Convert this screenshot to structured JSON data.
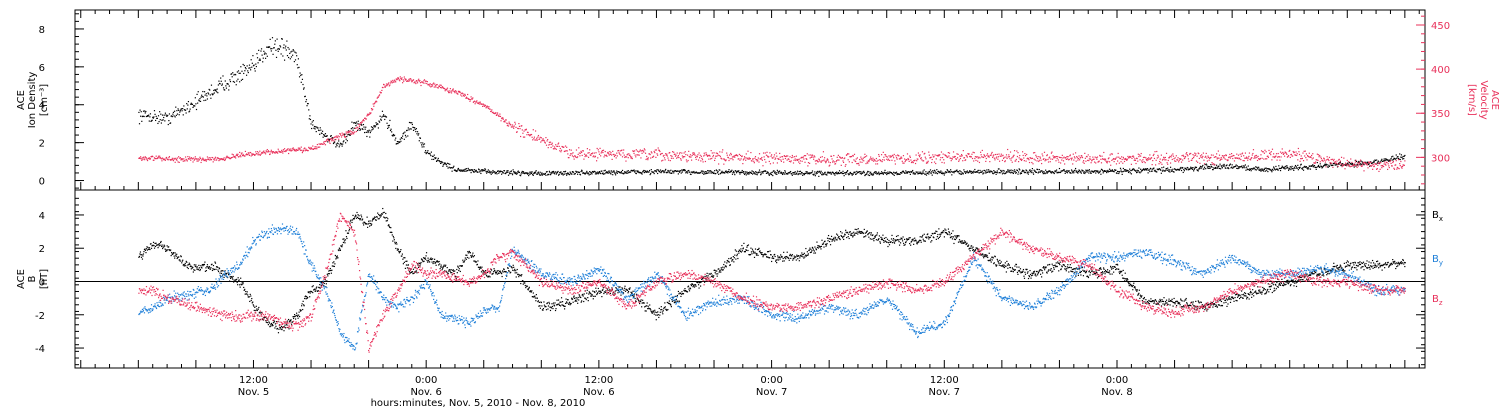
{
  "chart_data": [
    {
      "type": "scatter",
      "panel": "top",
      "ylabel_left": [
        "ACE",
        "Ion Density",
        "[cm⁻³]"
      ],
      "ylabel_right": [
        "ACE",
        "Velocity",
        "[km/s]"
      ],
      "ylim_left": [
        -0.5,
        9.0
      ],
      "ylim_right": [
        263,
        467
      ],
      "yticks_left": [
        0,
        2,
        4,
        6,
        8
      ],
      "yticks_right": [
        300,
        350,
        400,
        450
      ],
      "colors": {
        "density": "#000000",
        "velocity": "#e8305a"
      },
      "series": [
        {
          "name": "Ion Density",
          "axis": "left",
          "x": [
            0,
            2,
            4,
            6,
            8,
            9,
            10,
            11,
            12,
            14,
            15,
            16,
            17,
            18,
            19,
            20,
            21,
            22,
            24,
            28,
            36,
            48,
            60,
            66,
            72,
            76,
            78,
            80,
            82,
            84,
            86,
            88
          ],
          "y": [
            3.5,
            3.3,
            4.2,
            5.2,
            6.0,
            7.2,
            7.0,
            6.5,
            3.0,
            1.8,
            3.0,
            2.5,
            3.5,
            2.0,
            3.0,
            1.5,
            1.0,
            0.6,
            0.5,
            0.4,
            0.5,
            0.4,
            0.5,
            0.5,
            0.6,
            0.8,
            0.6,
            0.7,
            0.8,
            0.9,
            1.0,
            1.3
          ]
        },
        {
          "name": "Velocity",
          "axis": "right",
          "x": [
            0,
            4,
            6,
            8,
            10,
            12,
            14,
            15,
            16,
            17,
            18,
            20,
            22,
            24,
            26,
            28,
            30,
            36,
            48,
            60,
            66,
            72,
            76,
            80,
            84,
            88
          ],
          "y": [
            300,
            298,
            300,
            305,
            308,
            310,
            325,
            330,
            350,
            380,
            390,
            385,
            375,
            360,
            335,
            320,
            305,
            303,
            298,
            302,
            298,
            300,
            300,
            305,
            293,
            292
          ]
        }
      ]
    },
    {
      "type": "scatter",
      "panel": "bottom",
      "ylabel_left": [
        "ACE",
        "B",
        "[nT]"
      ],
      "ylim": [
        -5.2,
        5.5
      ],
      "yticks": [
        -4,
        -2,
        0,
        2,
        4
      ],
      "legend": [
        "Bx",
        "By",
        "Bz"
      ],
      "legend_position": "right",
      "colors": {
        "Bx": "#000000",
        "By": "#1e7fd8",
        "Bz": "#e8305a"
      },
      "series": [
        {
          "name": "Bx",
          "x": [
            0,
            1,
            2,
            3,
            4,
            5,
            6,
            7,
            8,
            9,
            10,
            11,
            12,
            13,
            14,
            15,
            16,
            17,
            18,
            19,
            20,
            21,
            22,
            23,
            24,
            25,
            26,
            28,
            30,
            32,
            34,
            36,
            38,
            40,
            42,
            44,
            46,
            48,
            50,
            52,
            54,
            56,
            58,
            60,
            62,
            64,
            66,
            68,
            70,
            72,
            74,
            76,
            78,
            80,
            82,
            84,
            86,
            88
          ],
          "y": [
            1.5,
            2.3,
            2.0,
            1.2,
            0.8,
            1.0,
            0.5,
            0.0,
            -1.5,
            -2.5,
            -2.8,
            -2.0,
            -0.5,
            0.0,
            2.0,
            4.0,
            3.5,
            4.2,
            2.0,
            0.5,
            1.5,
            1.0,
            0.5,
            1.8,
            0.5,
            0.6,
            0.8,
            -1.5,
            -1.2,
            -0.5,
            -0.5,
            -2.0,
            -0.5,
            0.5,
            2.0,
            1.5,
            1.5,
            2.5,
            3.0,
            2.5,
            2.5,
            3.0,
            2.0,
            1.0,
            0.5,
            1.0,
            0.5,
            0.8,
            -1.2,
            -1.2,
            -1.5,
            -1.0,
            -0.5,
            0.0,
            0.5,
            1.0,
            1.0,
            1.2
          ]
        },
        {
          "name": "By",
          "x": [
            0,
            1,
            2,
            3,
            4,
            5,
            6,
            7,
            8,
            9,
            10,
            11,
            12,
            13,
            14,
            15,
            16,
            17,
            18,
            19,
            20,
            21,
            22,
            23,
            24,
            25,
            26,
            28,
            30,
            32,
            34,
            36,
            38,
            40,
            42,
            44,
            46,
            48,
            50,
            52,
            54,
            56,
            58,
            60,
            62,
            64,
            66,
            68,
            70,
            72,
            74,
            76,
            78,
            80,
            82,
            84,
            86,
            88
          ],
          "y": [
            -1.8,
            -1.5,
            -1.0,
            -0.8,
            -0.6,
            -0.5,
            0.5,
            1.0,
            2.5,
            3.0,
            3.2,
            3.0,
            1.0,
            -0.5,
            -3.0,
            -4.0,
            0.5,
            -1.0,
            -1.5,
            -1.0,
            0.0,
            -2.0,
            -2.2,
            -2.5,
            -1.8,
            -1.5,
            2.0,
            0.5,
            0.0,
            0.8,
            -1.0,
            0.5,
            -2.0,
            -1.2,
            -1.0,
            -2.0,
            -2.2,
            -1.5,
            -2.0,
            -1.0,
            -3.0,
            -2.5,
            1.5,
            -1.0,
            -1.5,
            -0.5,
            1.5,
            1.5,
            1.8,
            1.2,
            0.5,
            1.5,
            0.5,
            0.5,
            0.8,
            0.5,
            -0.5,
            -0.5
          ]
        },
        {
          "name": "Bz",
          "x": [
            0,
            1,
            2,
            3,
            4,
            5,
            6,
            7,
            8,
            9,
            10,
            11,
            12,
            13,
            14,
            15,
            16,
            17,
            18,
            19,
            20,
            21,
            22,
            23,
            24,
            25,
            26,
            28,
            30,
            32,
            34,
            36,
            38,
            40,
            42,
            44,
            46,
            48,
            50,
            52,
            54,
            56,
            58,
            60,
            62,
            64,
            66,
            68,
            70,
            72,
            74,
            76,
            78,
            80,
            82,
            84,
            86,
            88
          ],
          "y": [
            -0.5,
            -0.5,
            -1.0,
            -1.2,
            -1.5,
            -1.8,
            -2.0,
            -2.1,
            -2.0,
            -2.0,
            -2.5,
            -2.6,
            -2.0,
            0.5,
            4.0,
            3.0,
            -4.0,
            -2.0,
            -0.5,
            1.0,
            0.5,
            0.5,
            0.2,
            0.0,
            0.5,
            1.5,
            1.8,
            0.0,
            -0.5,
            0.0,
            -1.5,
            0.0,
            0.5,
            0.0,
            -1.0,
            -1.5,
            -1.5,
            -1.0,
            -0.5,
            0.0,
            -0.5,
            0.0,
            1.5,
            3.0,
            2.0,
            1.5,
            1.0,
            -0.5,
            -1.5,
            -1.8,
            -1.5,
            -0.5,
            0.0,
            0.5,
            0.0,
            0.0,
            -0.5,
            -0.5
          ]
        }
      ]
    }
  ],
  "xaxis": {
    "title": "hours:minutes, Nov. 5, 2010 - Nov. 8, 2010",
    "ticks": [
      {
        "x": 8,
        "time": "12:00",
        "date": "Nov. 5"
      },
      {
        "x": 20,
        "time": "0:00",
        "date": "Nov. 6"
      },
      {
        "x": 32,
        "time": "12:00",
        "date": "Nov. 6"
      },
      {
        "x": 44,
        "time": "0:00",
        "date": "Nov. 7"
      },
      {
        "x": 56,
        "time": "12:00",
        "date": "Nov. 7"
      },
      {
        "x": 68,
        "time": "0:00",
        "date": "Nov. 8"
      }
    ]
  }
}
